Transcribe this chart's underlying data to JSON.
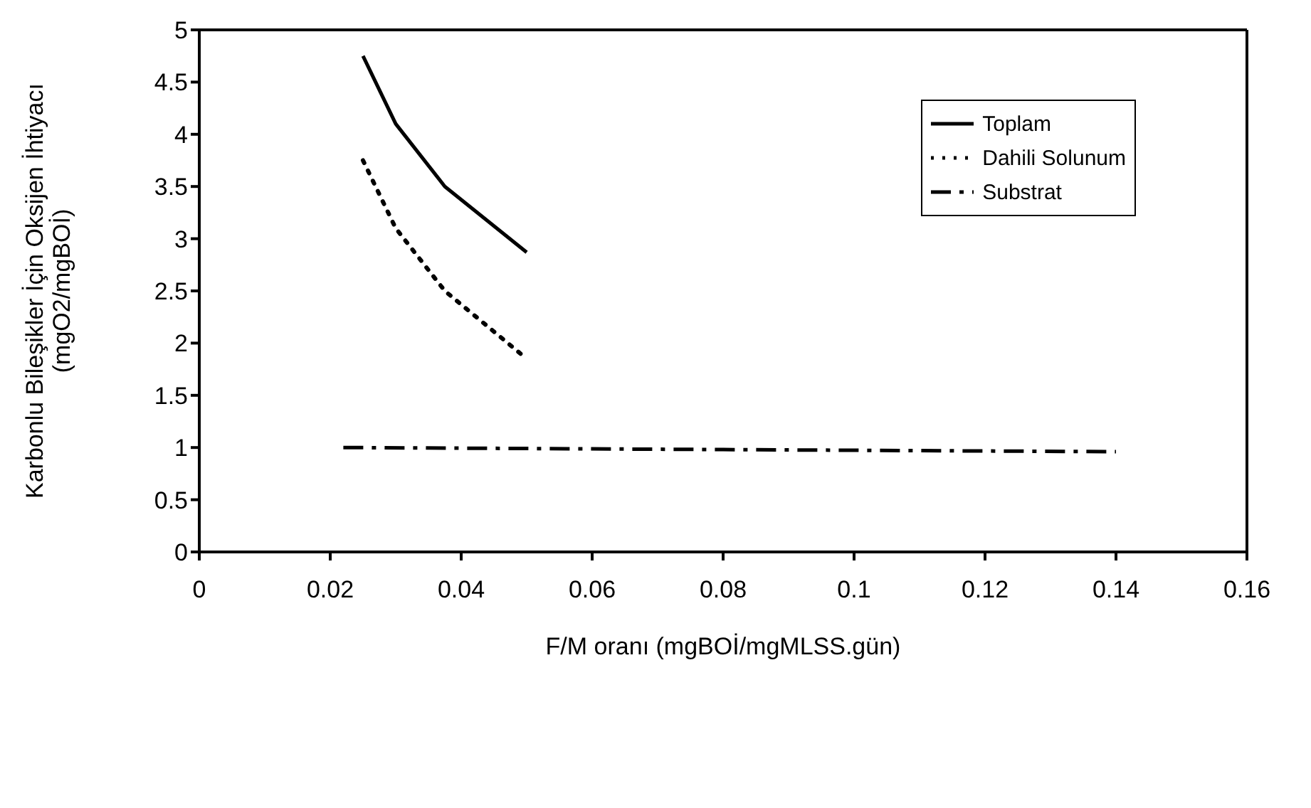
{
  "chart_data": {
    "type": "line",
    "xlabel": "F/M oranı (mgBOİ/mgMLSS.gün)",
    "ylabel": "Karbonlu Bileşikler İçin Oksijen İhtiyacı\n(mgO2/mgBOİ)",
    "series": [
      {
        "name": "Toplam",
        "color": "#000000",
        "line_style": "solid",
        "x": [
          0.025,
          0.03,
          0.0375,
          0.05
        ],
        "values": [
          4.75,
          4.1,
          3.5,
          2.87
        ]
      },
      {
        "name": "Dahili Solunum",
        "color": "#000000",
        "line_style": "dotted",
        "x": [
          0.025,
          0.03,
          0.0375,
          0.05
        ],
        "values": [
          3.75,
          3.1,
          2.5,
          1.85
        ]
      },
      {
        "name": "Substrat",
        "color": "#000000",
        "line_style": "dashed",
        "x": [
          0.022,
          0.14
        ],
        "values": [
          1.0,
          0.96
        ]
      }
    ],
    "xlim": [
      0,
      0.16
    ],
    "xticks": [
      0,
      0.02,
      0.04,
      0.06,
      0.08,
      0.1,
      0.12,
      0.14,
      0.16
    ],
    "ylim": [
      0,
      5
    ],
    "yticks": [
      0,
      0.5,
      1,
      1.5,
      2,
      2.5,
      3,
      3.5,
      4,
      4.5,
      5
    ],
    "grid": false,
    "legend": "top right",
    "marker": "none"
  }
}
